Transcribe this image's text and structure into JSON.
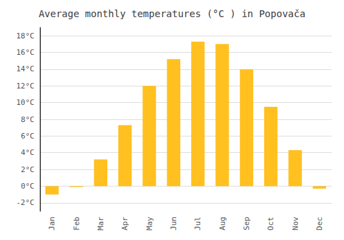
{
  "chart_data": {
    "type": "bar",
    "title": "Average monthly temperatures (°C ) in Popovača",
    "categories": [
      "Jan",
      "Feb",
      "Mar",
      "Apr",
      "May",
      "Jun",
      "Jul",
      "Aug",
      "Sep",
      "Oct",
      "Nov",
      "Dec"
    ],
    "values": [
      -1.0,
      -0.1,
      3.2,
      7.3,
      12.0,
      15.2,
      17.3,
      17.0,
      14.0,
      9.5,
      4.3,
      -0.3
    ],
    "color": "#FFC020",
    "ylim": [
      -3,
      19
    ],
    "yticks": [
      {
        "value": -2,
        "label": "-2°C"
      },
      {
        "value": 0,
        "label": "0°C"
      },
      {
        "value": 2,
        "label": "2°C"
      },
      {
        "value": 4,
        "label": "4°C"
      },
      {
        "value": 6,
        "label": "6°C"
      },
      {
        "value": 8,
        "label": "8°C"
      },
      {
        "value": 10,
        "label": "10°C"
      },
      {
        "value": 12,
        "label": "12°C"
      },
      {
        "value": 14,
        "label": "14°C"
      },
      {
        "value": 16,
        "label": "16°C"
      },
      {
        "value": 18,
        "label": "18°C"
      }
    ],
    "grid": true
  }
}
